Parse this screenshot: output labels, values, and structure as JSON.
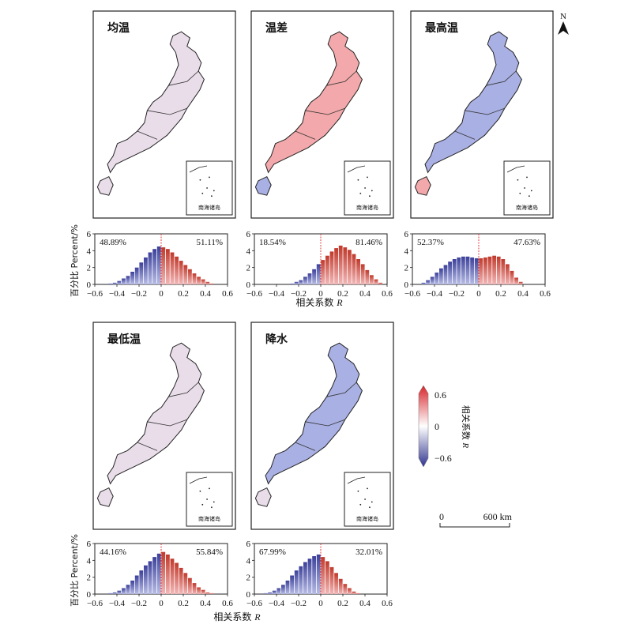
{
  "north_arrow": {
    "label": "N"
  },
  "inset": {
    "label": "南海诸岛"
  },
  "panels": [
    {
      "title": "均温",
      "pct_neg": "48.89%",
      "pct_pos": "51.11%",
      "tint": 0.0
    },
    {
      "title": "温差",
      "pct_neg": "18.54%",
      "pct_pos": "81.46%",
      "tint": 0.45
    },
    {
      "title": "最高温",
      "pct_neg": "52.37%",
      "pct_pos": "47.63%",
      "tint": -0.35
    },
    {
      "title": "最低温",
      "pct_neg": "44.16%",
      "pct_pos": "55.84%",
      "tint": 0.05
    },
    {
      "title": "降水",
      "pct_neg": "67.99%",
      "pct_pos": "32.01%",
      "tint": -0.3
    }
  ],
  "histogram_axis": {
    "ylabel": "百分比 Percent/%",
    "xlabel_cn": "相关系数",
    "xlabel_sym": "R",
    "yticks": [
      "0",
      "2",
      "4",
      "6"
    ],
    "xticks": [
      "−0.6",
      "−0.4",
      "−0.2",
      "0",
      "0.2",
      "0.4",
      "0.6"
    ]
  },
  "legend": {
    "max_label": "0.6",
    "mid_label": "0",
    "min_label": "−0.6",
    "title_cn": "相关系数",
    "title_sym": "R",
    "colors": {
      "high": "#d7262c",
      "mid": "#ffffff",
      "low": "#31358f"
    }
  },
  "scale_bar": {
    "start_label": "0",
    "end_label": "600 km"
  },
  "chart_data": [
    {
      "type": "bar",
      "panel": "均温",
      "x_range": [
        -0.6,
        0.6
      ],
      "ylim": [
        0,
        6
      ],
      "x": [
        -0.46,
        -0.42,
        -0.38,
        -0.34,
        -0.3,
        -0.26,
        -0.22,
        -0.18,
        -0.14,
        -0.1,
        -0.06,
        -0.02,
        0.02,
        0.06,
        0.1,
        0.14,
        0.18,
        0.22,
        0.26,
        0.3,
        0.34,
        0.38,
        0.42,
        0.46
      ],
      "values": [
        0.1,
        0.2,
        0.4,
        0.7,
        1.0,
        1.5,
        2.0,
        2.6,
        3.2,
        3.8,
        4.2,
        4.5,
        4.4,
        4.2,
        3.8,
        3.3,
        2.8,
        2.3,
        1.8,
        1.3,
        0.9,
        0.6,
        0.3,
        0.1
      ]
    },
    {
      "type": "bar",
      "panel": "温差",
      "x_range": [
        -0.6,
        0.6
      ],
      "ylim": [
        0,
        6
      ],
      "x": [
        -0.26,
        -0.22,
        -0.18,
        -0.14,
        -0.1,
        -0.06,
        -0.02,
        0.02,
        0.06,
        0.1,
        0.14,
        0.18,
        0.22,
        0.26,
        0.3,
        0.34,
        0.38,
        0.42,
        0.46,
        0.5,
        0.54
      ],
      "values": [
        0.1,
        0.3,
        0.5,
        0.9,
        1.3,
        1.8,
        2.4,
        2.9,
        3.4,
        3.9,
        4.3,
        4.6,
        4.4,
        4.1,
        3.6,
        3.0,
        2.4,
        1.7,
        1.1,
        0.6,
        0.2
      ]
    },
    {
      "type": "bar",
      "panel": "最高温",
      "x_range": [
        -0.6,
        0.6
      ],
      "ylim": [
        0,
        6
      ],
      "x": [
        -0.5,
        -0.46,
        -0.42,
        -0.38,
        -0.34,
        -0.3,
        -0.26,
        -0.22,
        -0.18,
        -0.14,
        -0.1,
        -0.06,
        -0.02,
        0.02,
        0.06,
        0.1,
        0.14,
        0.18,
        0.22,
        0.26,
        0.3,
        0.34,
        0.38
      ],
      "values": [
        0.2,
        0.5,
        0.9,
        1.4,
        1.9,
        2.3,
        2.7,
        3.0,
        3.2,
        3.3,
        3.3,
        3.2,
        3.1,
        3.1,
        3.2,
        3.3,
        3.4,
        3.3,
        3.0,
        2.4,
        1.6,
        0.8,
        0.3
      ]
    },
    {
      "type": "bar",
      "panel": "最低温",
      "x_range": [
        -0.6,
        0.6
      ],
      "ylim": [
        0,
        6
      ],
      "x": [
        -0.46,
        -0.42,
        -0.38,
        -0.34,
        -0.3,
        -0.26,
        -0.22,
        -0.18,
        -0.14,
        -0.1,
        -0.06,
        -0.02,
        0.02,
        0.06,
        0.1,
        0.14,
        0.18,
        0.22,
        0.26,
        0.3,
        0.34,
        0.38,
        0.42,
        0.46
      ],
      "values": [
        0.1,
        0.2,
        0.4,
        0.7,
        1.1,
        1.6,
        2.2,
        2.8,
        3.4,
        3.9,
        4.4,
        4.8,
        5.0,
        4.7,
        4.2,
        3.7,
        3.1,
        2.5,
        1.9,
        1.3,
        0.8,
        0.5,
        0.2,
        0.1
      ]
    },
    {
      "type": "bar",
      "panel": "降水",
      "x_range": [
        -0.6,
        0.6
      ],
      "ylim": [
        0,
        6
      ],
      "x": [
        -0.5,
        -0.46,
        -0.42,
        -0.38,
        -0.34,
        -0.3,
        -0.26,
        -0.22,
        -0.18,
        -0.14,
        -0.1,
        -0.06,
        -0.02,
        0.02,
        0.06,
        0.1,
        0.14,
        0.18,
        0.22,
        0.26,
        0.3,
        0.34
      ],
      "values": [
        0.1,
        0.2,
        0.4,
        0.7,
        1.1,
        1.6,
        2.2,
        2.8,
        3.3,
        3.8,
        4.2,
        4.5,
        4.7,
        4.4,
        3.9,
        3.2,
        2.5,
        1.8,
        1.2,
        0.7,
        0.3,
        0.1
      ]
    }
  ]
}
